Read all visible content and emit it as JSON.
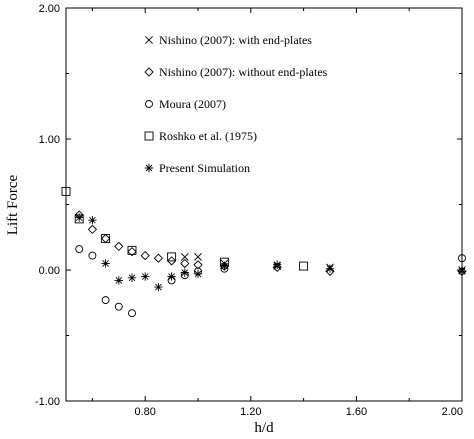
{
  "chart_data": {
    "type": "scatter",
    "xlabel": "h/d",
    "ylabel": "Lift Force",
    "xlim": [
      0.5,
      2.0
    ],
    "ylim": [
      -1.0,
      2.0
    ],
    "x_ticks": [
      "0.80",
      "1.20",
      "1.60",
      "2.00"
    ],
    "y_ticks": [
      "2.00",
      "1.00",
      "0.00",
      "-1.00"
    ],
    "x_tick_values": [
      0.8,
      1.2,
      1.6,
      2.0
    ],
    "y_tick_values": [
      2.0,
      1.0,
      0.0,
      -1.0
    ],
    "grid": false,
    "legend_position": "top-center",
    "series": [
      {
        "name": "Nishino (2007): with end-plates",
        "marker": "cross",
        "points": [
          [
            0.95,
            0.1
          ],
          [
            1.0,
            0.1
          ],
          [
            1.1,
            0.05
          ],
          [
            1.3,
            0.03
          ],
          [
            1.5,
            0.02
          ],
          [
            2.0,
            0.0
          ]
        ]
      },
      {
        "name": "Nishino (2007): without end-plates",
        "marker": "diamond",
        "points": [
          [
            0.55,
            0.42
          ],
          [
            0.6,
            0.31
          ],
          [
            0.65,
            0.24
          ],
          [
            0.7,
            0.18
          ],
          [
            0.75,
            0.14
          ],
          [
            0.8,
            0.11
          ],
          [
            0.85,
            0.09
          ],
          [
            0.9,
            0.07
          ],
          [
            0.95,
            0.05
          ],
          [
            1.0,
            0.04
          ],
          [
            1.1,
            0.03
          ],
          [
            1.3,
            0.02
          ],
          [
            1.5,
            -0.01
          ],
          [
            2.0,
            -0.01
          ]
        ]
      },
      {
        "name": "Moura (2007)",
        "marker": "circle",
        "points": [
          [
            0.55,
            0.16
          ],
          [
            0.6,
            0.11
          ],
          [
            0.65,
            -0.23
          ],
          [
            0.7,
            -0.28
          ],
          [
            0.75,
            -0.33
          ],
          [
            0.9,
            -0.08
          ],
          [
            0.95,
            -0.04
          ],
          [
            1.0,
            -0.01
          ],
          [
            1.1,
            0.01
          ],
          [
            2.0,
            0.09
          ]
        ]
      },
      {
        "name": "Roshko et al. (1975)",
        "marker": "square",
        "points": [
          [
            0.5,
            0.6
          ],
          [
            0.55,
            0.39
          ],
          [
            0.65,
            0.24
          ],
          [
            0.75,
            0.15
          ],
          [
            0.9,
            0.1
          ],
          [
            1.1,
            0.06
          ],
          [
            1.4,
            0.03
          ]
        ]
      },
      {
        "name": "Present Simulation",
        "marker": "asterisk",
        "points": [
          [
            0.55,
            0.4
          ],
          [
            0.6,
            0.38
          ],
          [
            0.65,
            0.05
          ],
          [
            0.7,
            -0.08
          ],
          [
            0.75,
            -0.06
          ],
          [
            0.8,
            -0.05
          ],
          [
            0.85,
            -0.13
          ],
          [
            0.9,
            -0.05
          ],
          [
            0.95,
            -0.02
          ],
          [
            1.0,
            -0.03
          ],
          [
            1.1,
            0.03
          ],
          [
            1.3,
            0.04
          ],
          [
            1.5,
            0.01
          ],
          [
            2.0,
            -0.01
          ]
        ]
      }
    ]
  }
}
